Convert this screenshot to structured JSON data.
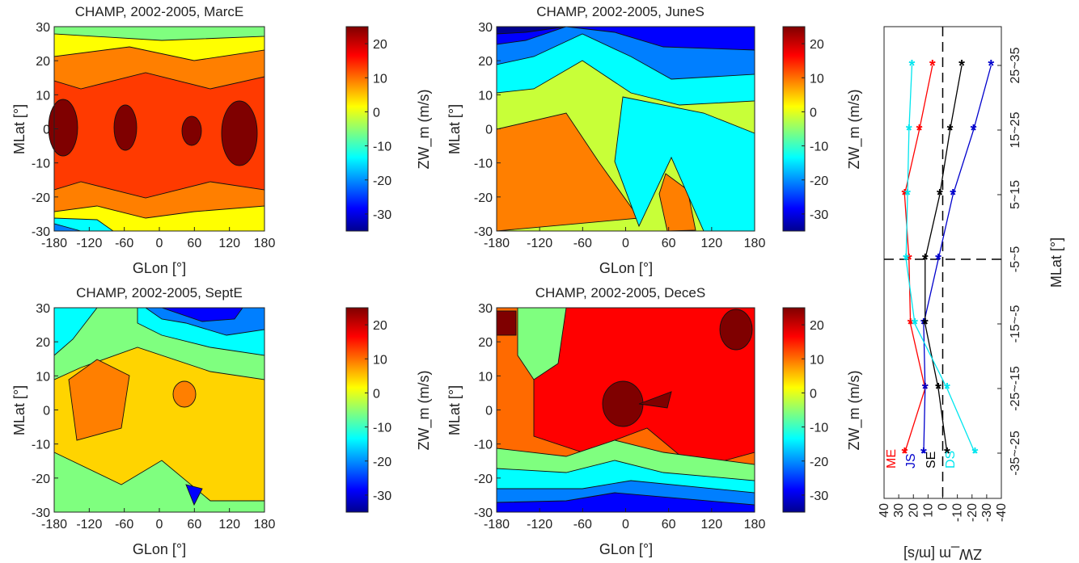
{
  "maps": [
    {
      "title": "CHAMP, 2002-2005, MarcE",
      "xlabel": "GLon [°]",
      "ylabel": "MLat [°]",
      "colorbar_label": "ZW_m (m/s)",
      "pattern": "marce"
    },
    {
      "title": "CHAMP, 2002-2005, JuneS",
      "xlabel": "GLon [°]",
      "ylabel": "MLat [°]",
      "colorbar_label": "ZW_m (m/s)",
      "pattern": "junes"
    },
    {
      "title": "CHAMP, 2002-2005, SeptE",
      "xlabel": "GLon [°]",
      "ylabel": "MLat [°]",
      "colorbar_label": "ZW_m (m/s)",
      "pattern": "septe"
    },
    {
      "title": "CHAMP, 2002-2005, DeceS",
      "xlabel": "GLon [°]",
      "ylabel": "MLat [°]",
      "colorbar_label": "ZW_m (m/s)",
      "pattern": "deces"
    }
  ],
  "map_axes": {
    "x_ticks": [
      "-180",
      "-120",
      "-60",
      "0",
      "60",
      "120",
      "180"
    ],
    "x_range": [
      -180,
      180
    ],
    "y_ticks": [
      "-30",
      "-20",
      "-10",
      "0",
      "10",
      "20",
      "30"
    ],
    "y_range": [
      -30,
      30
    ],
    "colorbar_ticks": [
      "20",
      "10",
      "0",
      "-10",
      "-20",
      "-30"
    ],
    "colorbar_range": [
      -35,
      25
    ],
    "contour_step": 5
  },
  "chart_data": [
    {
      "type": "line",
      "orientation": "horizontal-profile",
      "xlabel": "ZW_m [m/s]",
      "ylabel": "MLat [°]",
      "xlim": [
        40,
        -40
      ],
      "x_ticks": [
        "40",
        "30",
        "20",
        "10",
        "0",
        "-10",
        "-20",
        "-30",
        "-40"
      ],
      "categories": [
        "25~35",
        "15~25",
        "5~15",
        "-5~5",
        "-15~-5",
        "-25~-15",
        "-35~-25"
      ],
      "series": [
        {
          "name": "ME",
          "color": "#ff0000",
          "values": [
            7,
            16,
            26,
            23,
            22,
            12,
            26
          ]
        },
        {
          "name": "JS",
          "color": "#0000cc",
          "values": [
            -33,
            -21,
            -7,
            3,
            13,
            12,
            13
          ]
        },
        {
          "name": "SE",
          "color": "#000000",
          "values": [
            -13,
            -5,
            2,
            12,
            12,
            3,
            -3
          ]
        },
        {
          "name": "DS",
          "color": "#00e5ee",
          "values": [
            21,
            23,
            24,
            25,
            19,
            -3,
            -22
          ]
        }
      ],
      "reference_lines": {
        "x": 0,
        "category": "-5~5"
      },
      "legend_position": "lower-left"
    }
  ],
  "colors": {
    "colormap": [
      "#00008f",
      "#0000ff",
      "#007fff",
      "#00ffff",
      "#7fff7f",
      "#ffff00",
      "#ff7f00",
      "#ff0000",
      "#7f0000"
    ],
    "dashed_reference": "#000000"
  }
}
